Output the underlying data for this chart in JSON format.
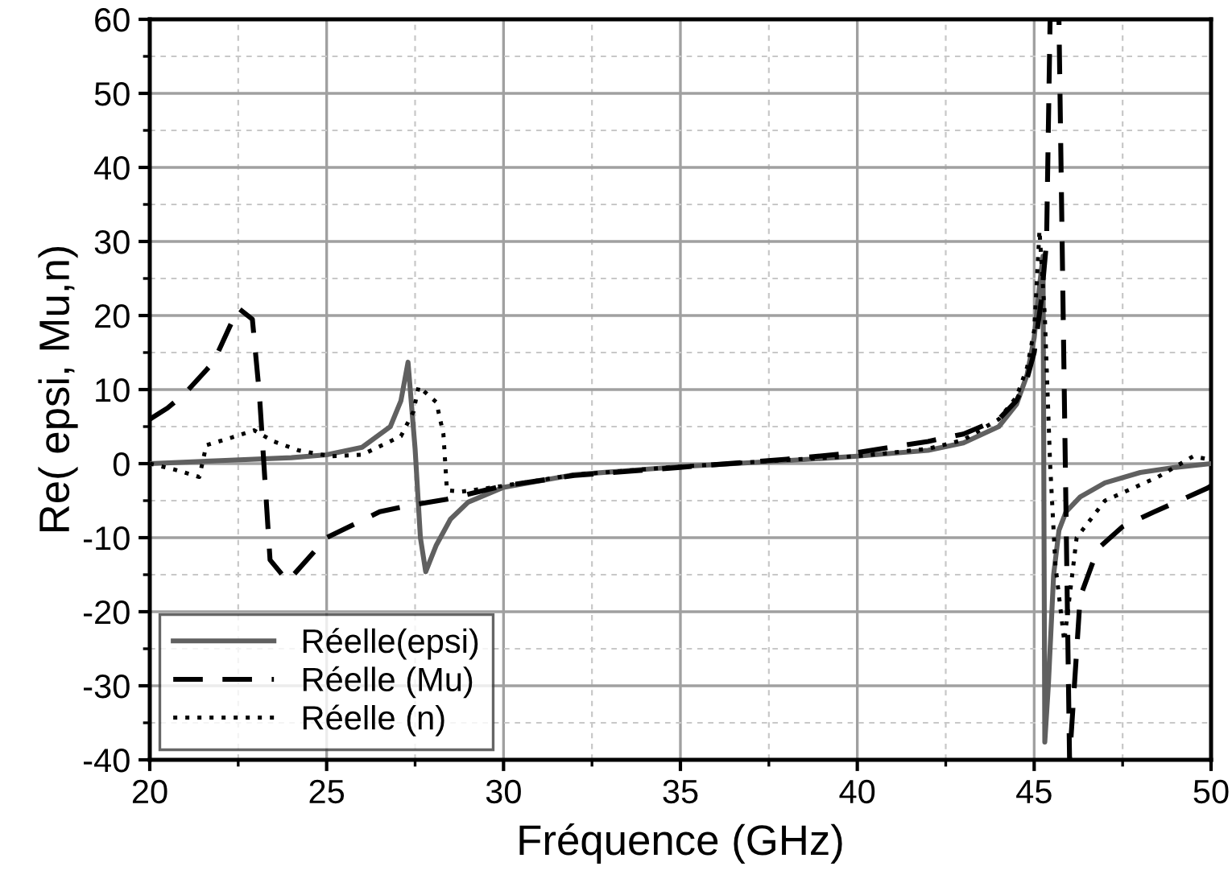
{
  "chart_data": {
    "type": "line",
    "xlabel": "Fréquence (GHz)",
    "ylabel": "Re( epsi, Mu,n)",
    "xlim": [
      20,
      50
    ],
    "ylim": [
      -40,
      60
    ],
    "xticks": [
      20,
      25,
      30,
      35,
      40,
      45,
      50
    ],
    "yticks": [
      -40,
      -30,
      -20,
      -10,
      0,
      10,
      20,
      30,
      40,
      50,
      60
    ],
    "grid": true,
    "legend": "bottom left",
    "marker": "none",
    "series": [
      {
        "name": "Réelle(epsi)",
        "color": "#606060",
        "line_style": "solid",
        "x": [
          20,
          22,
          24,
          25,
          26,
          26.8,
          27.1,
          27.3,
          27.5,
          27.65,
          27.8,
          28.1,
          28.5,
          29,
          30,
          32,
          35,
          38,
          40,
          42,
          43,
          44,
          44.5,
          44.8,
          45.0,
          45.15,
          45.25,
          45.3,
          45.4,
          45.55,
          45.7,
          45.9,
          46.3,
          47,
          48,
          49,
          50
        ],
        "values": [
          0,
          0.4,
          0.8,
          1.2,
          2.2,
          5,
          8.5,
          13.7,
          2,
          -10,
          -14.6,
          -11,
          -7.5,
          -5.2,
          -3.2,
          -1.5,
          -0.4,
          0.4,
          1,
          1.8,
          2.8,
          5,
          8,
          12,
          17,
          24,
          28,
          -37.6,
          -30,
          -15,
          -9,
          -6.5,
          -4.5,
          -2.6,
          -1.2,
          -0.5,
          0
        ]
      },
      {
        "name": "Réelle (Mu)",
        "color": "#000000",
        "line_style": "dashed",
        "x": [
          20,
          20.5,
          21,
          21.8,
          22.5,
          22.9,
          23.1,
          23.4,
          23.9,
          25,
          26.5,
          27.4,
          28.4,
          30,
          32,
          35,
          38,
          40,
          42,
          43,
          44,
          44.5,
          44.8,
          45.0,
          45.2,
          45.35,
          45.45,
          45.7,
          46.0,
          46.3,
          46.8,
          47.5,
          48.4,
          49.2,
          49.9,
          50
        ],
        "values": [
          6,
          7.5,
          9.5,
          13.7,
          21,
          19.5,
          9.3,
          -13,
          -15.9,
          -10,
          -6.5,
          -5.6,
          -4.8,
          -3,
          -1.6,
          -0.5,
          0.6,
          1.5,
          3,
          4,
          6,
          8.5,
          11.5,
          15,
          22,
          30,
          60,
          60,
          -40,
          -18,
          -11.5,
          -8.5,
          -6.5,
          -4.8,
          -3.3,
          -3
        ]
      },
      {
        "name": "Réelle (n)",
        "color": "#000000",
        "line_style": "dotted",
        "x": [
          20,
          20.7,
          21.4,
          21.6,
          22.3,
          22.95,
          23.5,
          24.2,
          25.1,
          26,
          27.1,
          27.45,
          27.6,
          28.1,
          28.3,
          28.4,
          28.8,
          30,
          32,
          35,
          38,
          40,
          42,
          43,
          44,
          44.5,
          44.8,
          45.0,
          45.15,
          45.3,
          45.45,
          45.6,
          45.85,
          46.2,
          47,
          48.5,
          49.5,
          50
        ],
        "values": [
          0,
          -0.8,
          -1.8,
          2.5,
          3.5,
          4.5,
          3,
          1.8,
          1,
          1.2,
          3.7,
          7,
          10.4,
          8.3,
          4,
          -3.6,
          -3.8,
          -3,
          -1.5,
          -0.4,
          0.5,
          1,
          2,
          3.2,
          6,
          9,
          13,
          18,
          31.5,
          20,
          0,
          -13.7,
          -24,
          -10,
          -5,
          -1.8,
          1,
          0.5
        ]
      }
    ]
  }
}
